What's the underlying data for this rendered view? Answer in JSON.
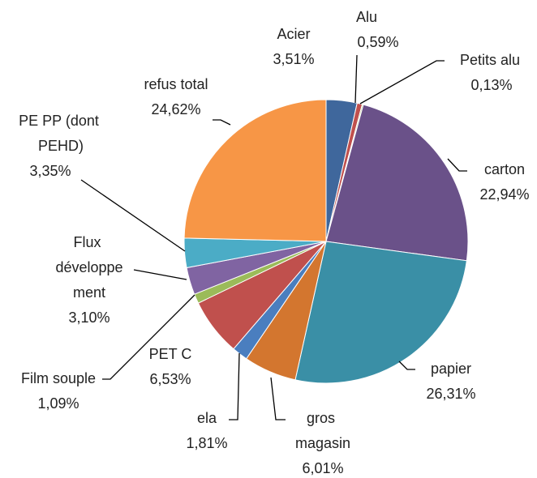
{
  "chart_data": {
    "type": "pie",
    "categories": [
      "Acier",
      "Alu",
      "Petits alu",
      "carton",
      "papier",
      "gros magasin",
      "ela",
      "PET C",
      "Film souple",
      "Flux développement",
      "PE PP (dont PEHD)",
      "refus total"
    ],
    "values": [
      3.51,
      0.59,
      0.13,
      22.94,
      26.31,
      6.01,
      1.81,
      6.53,
      1.09,
      3.1,
      3.35,
      24.62
    ],
    "value_labels": [
      "3,51%",
      "0,59%",
      "0,13%",
      "22,94%",
      "26,31%",
      "6,01%",
      "1,81%",
      "6,53%",
      "1,09%",
      "3,10%",
      "3,35%",
      "24,62%"
    ],
    "colors": [
      "#3f679c",
      "#c0504d",
      "#9bbb59",
      "#6a5189",
      "#3a8fa6",
      "#d3762f",
      "#4a7ebf",
      "#c0504d",
      "#9bbb59",
      "#8064a2",
      "#4bacc6",
      "#f79646"
    ]
  }
}
